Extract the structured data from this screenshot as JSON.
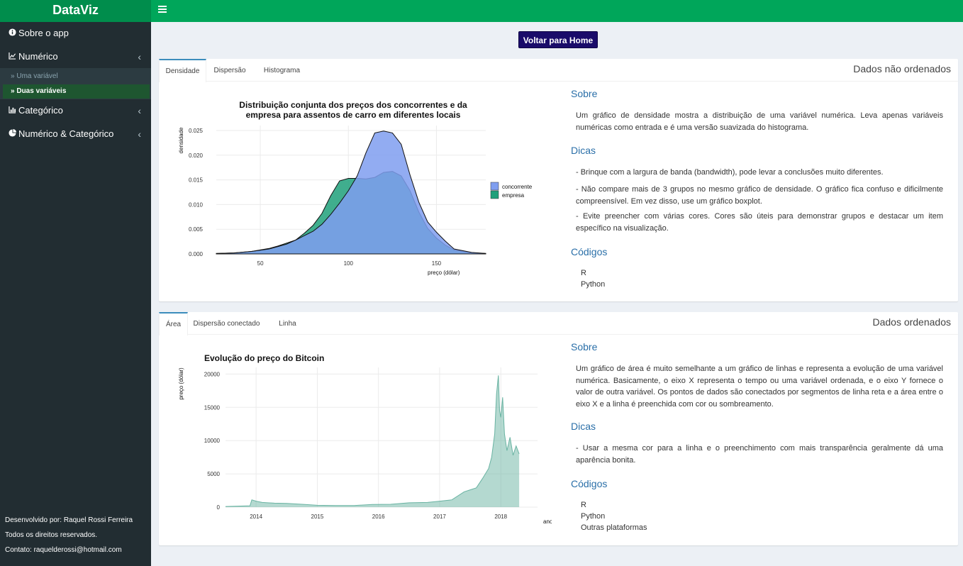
{
  "app": {
    "title": "DataViz"
  },
  "sidebar": {
    "items": [
      {
        "label": "Sobre o app",
        "icon": "info-circle-icon"
      },
      {
        "label": "Numérico",
        "icon": "line-chart-icon"
      },
      {
        "label": "Categórico",
        "icon": "bar-chart-icon"
      },
      {
        "label": "Numérico & Categórico",
        "icon": "pie-chart-icon"
      }
    ],
    "subitems": [
      {
        "label": "Uma variável",
        "active": false
      },
      {
        "label": "Duas variáveis",
        "active": true
      }
    ],
    "footer": [
      "Desenvolvido por: Raquel Rossi Ferreira",
      "Todos os direitos reservados.",
      "Contato: raquelderossi@hotmail.com"
    ]
  },
  "main": {
    "home_button": "Voltar para Home",
    "boxes": [
      {
        "title": "Dados não ordenados",
        "tabs": [
          "Densidade",
          "Dispersão",
          "Histograma"
        ],
        "active_tab": "Densidade",
        "sobre_heading": "Sobre",
        "sobre_text": "Um gráfico de densidade mostra a distribuição de uma variável numérica. Leva apenas variáveis numéricas como entrada e é uma versão suavizada do histograma.",
        "dicas_heading": "Dicas",
        "dicas": [
          "- Brinque com a largura de banda (bandwidth), pode levar a conclusões muito diferentes.",
          "- Não compare mais de 3 grupos no mesmo gráfico de densidade. O gráfico fica confuso e dificilmente compreensível. Em vez disso, use um gráfico boxplot.",
          "- Evite preencher com várias cores. Cores são úteis para demonstrar grupos e destacar um item específico na visualização."
        ],
        "codigos_heading": "Códigos",
        "codigos": [
          "R",
          "Python"
        ]
      },
      {
        "title": "Dados ordenados",
        "tabs": [
          "Área",
          "Dispersão conectado",
          "Linha"
        ],
        "active_tab": "Área",
        "sobre_heading": "Sobre",
        "sobre_text": "Um gráfico de área é muito semelhante a um gráfico de linhas e representa a evolução de uma variável numérica. Basicamente, o eixo X representa o tempo ou uma variável ordenada, e o eixo Y fornece o valor de outra variável. Os pontos de dados são conectados por segmentos de linha reta e a área entre o eixo X e a linha é preenchida com cor ou sombreamento.",
        "dicas_heading": "Dicas",
        "dicas": [
          "- Usar a mesma cor para a linha e o preenchimento com mais transparência geralmente dá uma aparência bonita."
        ],
        "codigos_heading": "Códigos",
        "codigos": [
          "R",
          "Python",
          "Outras plataformas"
        ]
      }
    ]
  },
  "chart_data": [
    {
      "type": "area",
      "title": "Distribuição conjunta dos preços dos concorrentes e da empresa para assentos de carro em diferentes locais",
      "xlabel": "preço (dólar)",
      "ylabel": "densidade",
      "xlim": [
        25,
        178
      ],
      "ylim": [
        0,
        0.026
      ],
      "xticks": [
        50,
        100,
        150
      ],
      "yticks": [
        0.0,
        0.005,
        0.01,
        0.015,
        0.02,
        0.025
      ],
      "ytick_labels": [
        "0.000",
        "0.005",
        "0.010",
        "0.015",
        "0.020",
        "0.025"
      ],
      "grid": true,
      "legend": "right",
      "x": [
        25,
        35,
        45,
        55,
        60,
        65,
        70,
        75,
        80,
        85,
        90,
        95,
        100,
        105,
        110,
        115,
        120,
        125,
        130,
        135,
        140,
        145,
        150,
        155,
        160,
        170,
        178
      ],
      "series": [
        {
          "name": "concorrente",
          "color": "#7f9ef0",
          "values": [
            0.0001,
            0.0002,
            0.0005,
            0.001,
            0.0015,
            0.002,
            0.0028,
            0.0037,
            0.0046,
            0.006,
            0.008,
            0.0103,
            0.0128,
            0.0158,
            0.0205,
            0.0245,
            0.0249,
            0.0245,
            0.0222,
            0.016,
            0.0105,
            0.0065,
            0.0044,
            0.0026,
            0.001,
            0.0003,
            0.0001
          ]
        },
        {
          "name": "empresa",
          "color": "#1fa07a",
          "values": [
            0.0001,
            0.0002,
            0.0005,
            0.0011,
            0.0016,
            0.0022,
            0.0028,
            0.0042,
            0.0058,
            0.0082,
            0.0118,
            0.0148,
            0.0153,
            0.0153,
            0.0152,
            0.0155,
            0.0165,
            0.0167,
            0.0158,
            0.0128,
            0.0085,
            0.0052,
            0.0032,
            0.0018,
            0.0008,
            0.0002,
            0.0001
          ]
        }
      ]
    },
    {
      "type": "area",
      "title": "Evolução do preço do Bitcoin",
      "xlabel": "ano",
      "ylabel": "preço (dólar)",
      "xlim": [
        2013.5,
        2018.6
      ],
      "ylim": [
        0,
        21000
      ],
      "xticks": [
        2014,
        2015,
        2016,
        2017,
        2018
      ],
      "yticks": [
        0,
        5000,
        10000,
        15000,
        20000
      ],
      "grid": true,
      "color": "#69b3a2",
      "x": [
        2013.5,
        2013.9,
        2013.93,
        2014.0,
        2014.1,
        2014.3,
        2014.5,
        2014.8,
        2015.0,
        2015.3,
        2015.6,
        2015.9,
        2016.2,
        2016.5,
        2016.8,
        2017.0,
        2017.2,
        2017.4,
        2017.5,
        2017.6,
        2017.7,
        2017.8,
        2017.85,
        2017.9,
        2017.93,
        2017.96,
        2017.98,
        2018.0,
        2018.03,
        2018.06,
        2018.1,
        2018.15,
        2018.2,
        2018.25,
        2018.3
      ],
      "values": [
        100,
        200,
        1100,
        900,
        700,
        600,
        550,
        400,
        280,
        250,
        250,
        400,
        430,
        650,
        700,
        900,
        1100,
        2300,
        2600,
        2900,
        4300,
        5800,
        7500,
        11000,
        17000,
        19800,
        14500,
        13500,
        16500,
        11000,
        8500,
        10500,
        7800,
        9200,
        8000
      ]
    }
  ]
}
